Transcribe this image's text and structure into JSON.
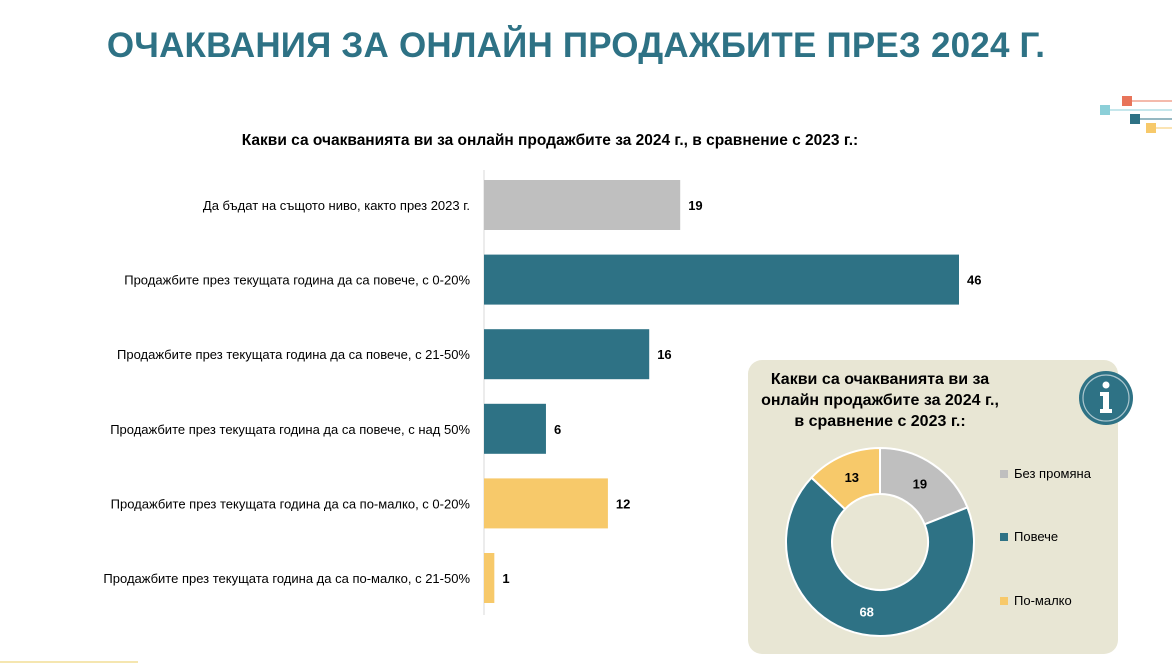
{
  "title": "ОЧАКВАНИЯ ЗА ОНЛАЙН ПРОДАЖБИТЕ ПРЕЗ 2024 Г.",
  "colors": {
    "gray": "#bfbfbf",
    "teal": "#2e7285",
    "yellow": "#f7c96a",
    "panel": "#e8e6d4"
  },
  "chart_data": [
    {
      "type": "bar",
      "orientation": "horizontal",
      "title": "Какви са очакванията ви за онлайн продажбите за 2024 г., в сравнение с 2023 г.:",
      "categories": [
        "Да бъдат на същото ниво, както през 2023 г.",
        "Продажбите през текущата година да са повече, с 0-20%",
        "Продажбите през текущата година да са повече, с 21-50%",
        "Продажбите през текущата година да са повече, с над 50%",
        "Продажбите през текущата година да са по-малко, с 0-20%",
        "Продажбите през текущата година да са по-малко, с 21-50%"
      ],
      "values": [
        19,
        46,
        16,
        6,
        12,
        1
      ],
      "bar_colors": [
        "#bfbfbf",
        "#2e7285",
        "#2e7285",
        "#2e7285",
        "#f7c96a",
        "#f7c96a"
      ],
      "data_labels": true,
      "xlim": [
        0,
        46
      ],
      "grid": false
    },
    {
      "type": "pie",
      "style": "donut",
      "title": "Какви са очакванията ви за онлайн продажбите за 2024 г., в сравнение с 2023 г.:",
      "labels": [
        "Без промяна",
        "Повече",
        "По-малко"
      ],
      "values": [
        19,
        68,
        13
      ],
      "colors": [
        "#bfbfbf",
        "#2e7285",
        "#f7c96a"
      ],
      "legend_position": "right"
    }
  ],
  "donut_title_lines": [
    "Какви са очакванията ви за",
    "онлайн продажбите за 2024 г.,",
    "в сравнение с 2023 г.:"
  ],
  "icons": {
    "info": "info-icon",
    "decoration": "decorative-squares-icon"
  }
}
